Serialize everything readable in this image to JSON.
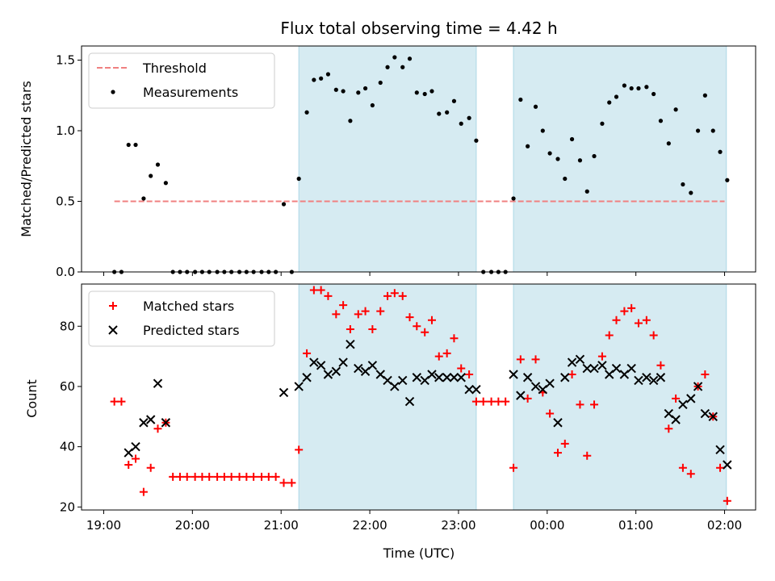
{
  "chart_data": {
    "title": "Flux total observing time = 4.42 h",
    "xlabel": "Time (UTC)",
    "x_unit": "hours since 19:00 UTC",
    "xlim": [
      -0.25,
      7.35
    ],
    "xticks": [
      0,
      1,
      2,
      3,
      4,
      5,
      6,
      7
    ],
    "xtick_labels": [
      "19:00",
      "20:00",
      "21:00",
      "22:00",
      "23:00",
      "00:00",
      "01:00",
      "02:00"
    ],
    "shaded_intervals": [
      [
        2.2,
        4.2
      ],
      [
        4.62,
        7.02
      ]
    ],
    "shade_color": "#add8e6",
    "panels": [
      {
        "type": "scatter",
        "ylabel": "Matched/Predicted stars",
        "ylim": [
          0,
          1.6
        ],
        "yticks": [
          0.0,
          0.5,
          1.0,
          1.5
        ],
        "ytick_labels": [
          "0.0",
          "0.5",
          "1.0",
          "1.5"
        ],
        "legend": "top-left",
        "threshold": {
          "name": "Threshold",
          "value": 0.5,
          "x_range": [
            0.12,
            7.0
          ],
          "color": "#f08080"
        },
        "series": [
          {
            "name": "Measurements",
            "marker": "dot",
            "color": "#000000",
            "points": [
              [
                0.12,
                0.0
              ],
              [
                0.2,
                0.0
              ],
              [
                0.28,
                0.9
              ],
              [
                0.36,
                0.9
              ],
              [
                0.45,
                0.52
              ],
              [
                0.53,
                0.68
              ],
              [
                0.61,
                0.76
              ],
              [
                0.7,
                0.63
              ],
              [
                0.78,
                0.0
              ],
              [
                0.86,
                0.0
              ],
              [
                0.94,
                0.0
              ],
              [
                1.03,
                0.0
              ],
              [
                1.11,
                0.0
              ],
              [
                1.19,
                0.0
              ],
              [
                1.28,
                0.0
              ],
              [
                1.36,
                0.0
              ],
              [
                1.44,
                0.0
              ],
              [
                1.53,
                0.0
              ],
              [
                1.61,
                0.0
              ],
              [
                1.69,
                0.0
              ],
              [
                1.78,
                0.0
              ],
              [
                1.86,
                0.0
              ],
              [
                1.94,
                0.0
              ],
              [
                2.03,
                0.48
              ],
              [
                2.12,
                0.0
              ],
              [
                2.2,
                0.66
              ],
              [
                2.29,
                1.13
              ],
              [
                2.37,
                1.36
              ],
              [
                2.45,
                1.37
              ],
              [
                2.53,
                1.4
              ],
              [
                2.62,
                1.29
              ],
              [
                2.7,
                1.28
              ],
              [
                2.78,
                1.07
              ],
              [
                2.87,
                1.27
              ],
              [
                2.95,
                1.3
              ],
              [
                3.03,
                1.18
              ],
              [
                3.12,
                1.34
              ],
              [
                3.2,
                1.45
              ],
              [
                3.28,
                1.52
              ],
              [
                3.37,
                1.45
              ],
              [
                3.45,
                1.51
              ],
              [
                3.53,
                1.27
              ],
              [
                3.62,
                1.26
              ],
              [
                3.7,
                1.28
              ],
              [
                3.78,
                1.12
              ],
              [
                3.87,
                1.13
              ],
              [
                3.95,
                1.21
              ],
              [
                4.03,
                1.05
              ],
              [
                4.12,
                1.09
              ],
              [
                4.2,
                0.93
              ],
              [
                4.28,
                0.0
              ],
              [
                4.37,
                0.0
              ],
              [
                4.45,
                0.0
              ],
              [
                4.53,
                0.0
              ],
              [
                4.62,
                0.52
              ],
              [
                4.7,
                1.22
              ],
              [
                4.78,
                0.89
              ],
              [
                4.87,
                1.17
              ],
              [
                4.95,
                1.0
              ],
              [
                5.03,
                0.84
              ],
              [
                5.12,
                0.8
              ],
              [
                5.2,
                0.66
              ],
              [
                5.28,
                0.94
              ],
              [
                5.37,
                0.79
              ],
              [
                5.45,
                0.57
              ],
              [
                5.53,
                0.82
              ],
              [
                5.62,
                1.05
              ],
              [
                5.7,
                1.2
              ],
              [
                5.78,
                1.24
              ],
              [
                5.87,
                1.32
              ],
              [
                5.95,
                1.3
              ],
              [
                6.03,
                1.3
              ],
              [
                6.12,
                1.31
              ],
              [
                6.2,
                1.26
              ],
              [
                6.28,
                1.07
              ],
              [
                6.37,
                0.91
              ],
              [
                6.45,
                1.15
              ],
              [
                6.53,
                0.62
              ],
              [
                6.62,
                0.56
              ],
              [
                6.7,
                1.0
              ],
              [
                6.78,
                1.25
              ],
              [
                6.87,
                1.0
              ],
              [
                6.95,
                0.85
              ],
              [
                7.03,
                0.65
              ]
            ]
          }
        ]
      },
      {
        "type": "scatter",
        "ylabel": "Count",
        "ylim": [
          19,
          94
        ],
        "yticks": [
          20,
          40,
          60,
          80
        ],
        "ytick_labels": [
          "20",
          "40",
          "60",
          "80"
        ],
        "legend": "top-left",
        "series": [
          {
            "name": "Matched stars",
            "marker": "plus",
            "color": "#ff0000",
            "points": [
              [
                0.12,
                55
              ],
              [
                0.2,
                55
              ],
              [
                0.28,
                34
              ],
              [
                0.36,
                36
              ],
              [
                0.45,
                25
              ],
              [
                0.53,
                33
              ],
              [
                0.61,
                46
              ],
              [
                0.7,
                48
              ],
              [
                0.78,
                30
              ],
              [
                0.86,
                30
              ],
              [
                0.94,
                30
              ],
              [
                1.03,
                30
              ],
              [
                1.11,
                30
              ],
              [
                1.19,
                30
              ],
              [
                1.28,
                30
              ],
              [
                1.36,
                30
              ],
              [
                1.44,
                30
              ],
              [
                1.53,
                30
              ],
              [
                1.61,
                30
              ],
              [
                1.69,
                30
              ],
              [
                1.78,
                30
              ],
              [
                1.86,
                30
              ],
              [
                1.94,
                30
              ],
              [
                2.03,
                28
              ],
              [
                2.12,
                28
              ],
              [
                2.2,
                39
              ],
              [
                2.29,
                71
              ],
              [
                2.37,
                92
              ],
              [
                2.45,
                92
              ],
              [
                2.53,
                90
              ],
              [
                2.62,
                84
              ],
              [
                2.7,
                87
              ],
              [
                2.78,
                79
              ],
              [
                2.87,
                84
              ],
              [
                2.95,
                85
              ],
              [
                3.03,
                79
              ],
              [
                3.12,
                85
              ],
              [
                3.2,
                90
              ],
              [
                3.28,
                91
              ],
              [
                3.37,
                90
              ],
              [
                3.45,
                83
              ],
              [
                3.53,
                80
              ],
              [
                3.62,
                78
              ],
              [
                3.7,
                82
              ],
              [
                3.78,
                70
              ],
              [
                3.87,
                71
              ],
              [
                3.95,
                76
              ],
              [
                4.03,
                66
              ],
              [
                4.12,
                64
              ],
              [
                4.2,
                55
              ],
              [
                4.28,
                55
              ],
              [
                4.37,
                55
              ],
              [
                4.45,
                55
              ],
              [
                4.53,
                55
              ],
              [
                4.62,
                33
              ],
              [
                4.7,
                69
              ],
              [
                4.78,
                56
              ],
              [
                4.87,
                69
              ],
              [
                4.95,
                58
              ],
              [
                5.03,
                51
              ],
              [
                5.12,
                38
              ],
              [
                5.2,
                41
              ],
              [
                5.28,
                64
              ],
              [
                5.37,
                54
              ],
              [
                5.45,
                37
              ],
              [
                5.53,
                54
              ],
              [
                5.62,
                70
              ],
              [
                5.7,
                77
              ],
              [
                5.78,
                82
              ],
              [
                5.87,
                85
              ],
              [
                5.95,
                86
              ],
              [
                6.03,
                81
              ],
              [
                6.12,
                82
              ],
              [
                6.2,
                77
              ],
              [
                6.28,
                67
              ],
              [
                6.37,
                46
              ],
              [
                6.45,
                56
              ],
              [
                6.53,
                33
              ],
              [
                6.62,
                31
              ],
              [
                6.7,
                60
              ],
              [
                6.78,
                64
              ],
              [
                6.87,
                50
              ],
              [
                6.95,
                33
              ],
              [
                7.03,
                22
              ]
            ]
          },
          {
            "name": "Predicted stars",
            "marker": "x",
            "color": "#000000",
            "points": [
              [
                0.28,
                38
              ],
              [
                0.36,
                40
              ],
              [
                0.45,
                48
              ],
              [
                0.53,
                49
              ],
              [
                0.61,
                61
              ],
              [
                0.7,
                48
              ],
              [
                2.03,
                58
              ],
              [
                2.2,
                60
              ],
              [
                2.29,
                63
              ],
              [
                2.37,
                68
              ],
              [
                2.45,
                67
              ],
              [
                2.53,
                64
              ],
              [
                2.62,
                65
              ],
              [
                2.7,
                68
              ],
              [
                2.78,
                74
              ],
              [
                2.87,
                66
              ],
              [
                2.95,
                65
              ],
              [
                3.03,
                67
              ],
              [
                3.12,
                64
              ],
              [
                3.2,
                62
              ],
              [
                3.28,
                60
              ],
              [
                3.37,
                62
              ],
              [
                3.45,
                55
              ],
              [
                3.53,
                63
              ],
              [
                3.62,
                62
              ],
              [
                3.7,
                64
              ],
              [
                3.78,
                63
              ],
              [
                3.87,
                63
              ],
              [
                3.95,
                63
              ],
              [
                4.03,
                63
              ],
              [
                4.12,
                59
              ],
              [
                4.2,
                59
              ],
              [
                4.62,
                64
              ],
              [
                4.7,
                57
              ],
              [
                4.78,
                63
              ],
              [
                4.87,
                60
              ],
              [
                4.95,
                59
              ],
              [
                5.03,
                61
              ],
              [
                5.12,
                48
              ],
              [
                5.2,
                63
              ],
              [
                5.28,
                68
              ],
              [
                5.37,
                69
              ],
              [
                5.45,
                66
              ],
              [
                5.53,
                66
              ],
              [
                5.62,
                67
              ],
              [
                5.7,
                64
              ],
              [
                5.78,
                66
              ],
              [
                5.87,
                64
              ],
              [
                5.95,
                66
              ],
              [
                6.03,
                62
              ],
              [
                6.12,
                63
              ],
              [
                6.2,
                62
              ],
              [
                6.28,
                63
              ],
              [
                6.37,
                51
              ],
              [
                6.45,
                49
              ],
              [
                6.53,
                54
              ],
              [
                6.62,
                56
              ],
              [
                6.7,
                60
              ],
              [
                6.78,
                51
              ],
              [
                6.87,
                50
              ],
              [
                6.95,
                39
              ],
              [
                7.03,
                34
              ]
            ]
          }
        ]
      }
    ]
  }
}
